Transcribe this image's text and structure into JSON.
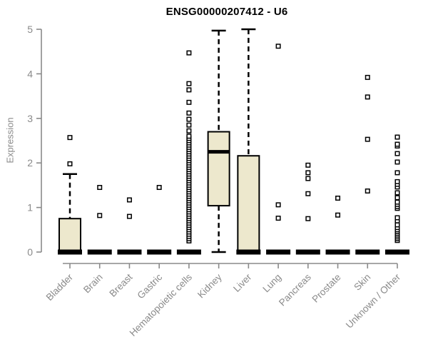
{
  "chart_data": {
    "type": "boxplot",
    "title": "ENSG00000207412 - U6",
    "ylabel": "Expression",
    "xlabel": "",
    "ylim": [
      0,
      5
    ],
    "yticks": [
      0,
      1,
      2,
      3,
      4,
      5
    ],
    "grid": false,
    "legend": false,
    "categories": [
      "Bladder",
      "Brain",
      "Breast",
      "Gastric",
      "Hematopoietic cells",
      "Kidney",
      "Liver",
      "Lung",
      "Pancreas",
      "Prostate",
      "Skin",
      "Unknown / Other"
    ],
    "boxes": [
      {
        "category": "Bladder",
        "low": 0,
        "q1": 0,
        "median": 0,
        "q3": 0.75,
        "high": 1.75,
        "outliers": [
          1.98,
          2.57
        ]
      },
      {
        "category": "Brain",
        "low": 0,
        "q1": 0,
        "median": 0,
        "q3": 0,
        "high": 0,
        "outliers": [
          0.82,
          1.45
        ]
      },
      {
        "category": "Breast",
        "low": 0,
        "q1": 0,
        "median": 0,
        "q3": 0,
        "high": 0,
        "outliers": [
          0.8,
          1.17
        ]
      },
      {
        "category": "Gastric",
        "low": 0,
        "q1": 0,
        "median": 0,
        "q3": 0,
        "high": 0,
        "outliers": [
          1.45
        ]
      },
      {
        "category": "Hematopoietic cells",
        "low": 0,
        "q1": 0,
        "median": 0,
        "q3": 0,
        "high": 0,
        "outliers": [
          0.25,
          0.3,
          0.35,
          0.4,
          0.45,
          0.5,
          0.55,
          0.6,
          0.65,
          0.7,
          0.75,
          0.8,
          0.85,
          0.9,
          0.95,
          1.0,
          1.05,
          1.1,
          1.15,
          1.2,
          1.25,
          1.3,
          1.35,
          1.4,
          1.45,
          1.5,
          1.55,
          1.6,
          1.65,
          1.7,
          1.75,
          1.8,
          1.85,
          1.9,
          1.95,
          2.0,
          2.05,
          2.1,
          2.15,
          2.2,
          2.25,
          2.3,
          2.35,
          2.4,
          2.45,
          2.5,
          2.55,
          2.6,
          2.72,
          2.85,
          2.98,
          3.12,
          3.36,
          3.64,
          3.78,
          4.47
        ]
      },
      {
        "category": "Kidney",
        "low": 0,
        "q1": 1.04,
        "median": 2.25,
        "q3": 2.7,
        "high": 4.97,
        "outliers": []
      },
      {
        "category": "Liver",
        "low": 0,
        "q1": 0,
        "median": 0,
        "q3": 2.16,
        "high": 5.0,
        "outliers": []
      },
      {
        "category": "Lung",
        "low": 0,
        "q1": 0,
        "median": 0,
        "q3": 0,
        "high": 0,
        "outliers": [
          0.76,
          1.06,
          4.62
        ]
      },
      {
        "category": "Pancreas",
        "low": 0,
        "q1": 0,
        "median": 0,
        "q3": 0,
        "high": 0,
        "outliers": [
          0.75,
          1.31,
          1.65,
          1.78,
          1.95
        ]
      },
      {
        "category": "Prostate",
        "low": 0,
        "q1": 0,
        "median": 0,
        "q3": 0,
        "high": 0,
        "outliers": [
          0.83,
          1.21
        ]
      },
      {
        "category": "Skin",
        "low": 0,
        "q1": 0,
        "median": 0,
        "q3": 0,
        "high": 0,
        "outliers": [
          1.37,
          2.53,
          3.48,
          3.92
        ]
      },
      {
        "category": "Unknown / Other",
        "low": 0,
        "q1": 0,
        "median": 0,
        "q3": 0,
        "high": 0,
        "outliers": [
          0.26,
          0.3,
          0.34,
          0.38,
          0.42,
          0.46,
          0.5,
          0.55,
          0.61,
          0.7,
          0.77,
          0.98,
          1.02,
          1.07,
          1.12,
          1.22,
          1.33,
          1.46,
          1.52,
          1.58,
          1.78,
          2.02,
          2.21,
          2.38,
          2.42,
          2.58
        ]
      }
    ],
    "colors": {
      "box_fill": "#EDE8CD",
      "box_stroke": "#000000",
      "median": "#000000",
      "whisker": "#000000",
      "outlier_stroke": "#000000",
      "outlier_fill": "#FFFFFF",
      "axis": "#8a8a8a",
      "tick_label": "#8a8a8a",
      "title": "#000000",
      "background": "#FFFFFF"
    }
  }
}
